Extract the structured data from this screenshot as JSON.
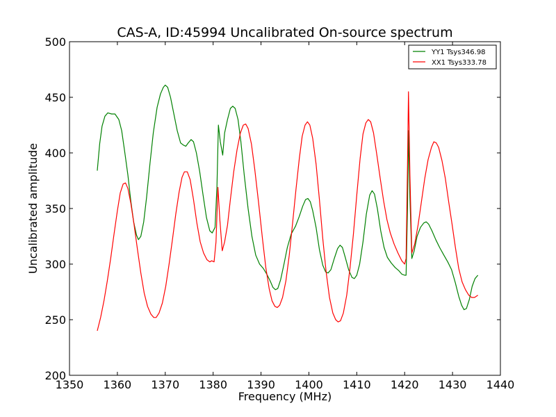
{
  "chart_data": {
    "type": "line",
    "title": "CAS-A, ID:45994 Uncalibrated On-source spectrum",
    "xlabel": "Frequency (MHz)",
    "ylabel": "Uncalibrated amplitude",
    "xlim": [
      1350,
      1440
    ],
    "ylim": [
      200,
      500
    ],
    "xticks": [
      1350,
      1360,
      1370,
      1380,
      1390,
      1400,
      1410,
      1420,
      1430,
      1440
    ],
    "yticks": [
      200,
      250,
      300,
      350,
      400,
      450,
      500
    ],
    "grid": false,
    "legend_position": "top-right",
    "series": [
      {
        "name": "YY1 Tsys346.98",
        "color": "#008000",
        "points": [
          [
            1355.8,
            384
          ],
          [
            1356.3,
            408
          ],
          [
            1356.8,
            424
          ],
          [
            1357.4,
            433
          ],
          [
            1358.0,
            436
          ],
          [
            1358.8,
            435
          ],
          [
            1359.5,
            435
          ],
          [
            1360.3,
            430
          ],
          [
            1360.9,
            420
          ],
          [
            1361.5,
            402
          ],
          [
            1362.2,
            380
          ],
          [
            1362.8,
            357
          ],
          [
            1363.4,
            338
          ],
          [
            1364.0,
            326
          ],
          [
            1364.4,
            322
          ],
          [
            1364.9,
            325
          ],
          [
            1365.5,
            338
          ],
          [
            1366.1,
            360
          ],
          [
            1366.8,
            390
          ],
          [
            1367.5,
            418
          ],
          [
            1368.3,
            441
          ],
          [
            1369.0,
            453
          ],
          [
            1369.6,
            459
          ],
          [
            1370.0,
            461
          ],
          [
            1370.5,
            459
          ],
          [
            1371.1,
            450
          ],
          [
            1371.8,
            435
          ],
          [
            1372.5,
            420
          ],
          [
            1373.2,
            409
          ],
          [
            1373.8,
            407
          ],
          [
            1374.3,
            406
          ],
          [
            1374.8,
            409
          ],
          [
            1375.4,
            412
          ],
          [
            1375.9,
            410
          ],
          [
            1376.5,
            400
          ],
          [
            1377.2,
            383
          ],
          [
            1377.9,
            362
          ],
          [
            1378.6,
            342
          ],
          [
            1379.3,
            330
          ],
          [
            1379.8,
            328
          ],
          [
            1380.4,
            333
          ],
          [
            1380.8,
            370
          ],
          [
            1381.1,
            425
          ],
          [
            1381.5,
            410
          ],
          [
            1382.0,
            398
          ],
          [
            1382.4,
            418
          ],
          [
            1383.0,
            430
          ],
          [
            1383.6,
            440
          ],
          [
            1384.1,
            442
          ],
          [
            1384.6,
            440
          ],
          [
            1385.2,
            430
          ],
          [
            1385.8,
            410
          ],
          [
            1386.5,
            380
          ],
          [
            1387.3,
            350
          ],
          [
            1388.1,
            325
          ],
          [
            1388.9,
            308
          ],
          [
            1389.7,
            300
          ],
          [
            1390.5,
            296
          ],
          [
            1391.2,
            291
          ],
          [
            1391.9,
            285
          ],
          [
            1392.5,
            279
          ],
          [
            1393.0,
            277
          ],
          [
            1393.5,
            278
          ],
          [
            1394.1,
            286
          ],
          [
            1394.8,
            300
          ],
          [
            1395.5,
            315
          ],
          [
            1396.3,
            327
          ],
          [
            1397.2,
            334
          ],
          [
            1398.0,
            343
          ],
          [
            1398.7,
            352
          ],
          [
            1399.3,
            358
          ],
          [
            1399.8,
            359
          ],
          [
            1400.3,
            356
          ],
          [
            1400.8,
            348
          ],
          [
            1401.5,
            333
          ],
          [
            1402.2,
            313
          ],
          [
            1402.9,
            299
          ],
          [
            1403.5,
            293
          ],
          [
            1404.0,
            292
          ],
          [
            1404.6,
            295
          ],
          [
            1405.3,
            305
          ],
          [
            1406.0,
            314
          ],
          [
            1406.5,
            317
          ],
          [
            1407.0,
            315
          ],
          [
            1407.6,
            306
          ],
          [
            1408.3,
            295
          ],
          [
            1409.0,
            288
          ],
          [
            1409.5,
            287
          ],
          [
            1410.0,
            290
          ],
          [
            1410.6,
            300
          ],
          [
            1411.3,
            320
          ],
          [
            1412.0,
            345
          ],
          [
            1412.7,
            362
          ],
          [
            1413.2,
            366
          ],
          [
            1413.7,
            363
          ],
          [
            1414.3,
            350
          ],
          [
            1415.0,
            330
          ],
          [
            1415.7,
            315
          ],
          [
            1416.4,
            306
          ],
          [
            1417.2,
            301
          ],
          [
            1418.0,
            297
          ],
          [
            1418.8,
            294
          ],
          [
            1419.4,
            291
          ],
          [
            1420.0,
            290
          ],
          [
            1420.3,
            290
          ],
          [
            1420.6,
            350
          ],
          [
            1420.8,
            420
          ],
          [
            1421.1,
            360
          ],
          [
            1421.5,
            305
          ],
          [
            1422.0,
            312
          ],
          [
            1422.6,
            325
          ],
          [
            1423.3,
            333
          ],
          [
            1424.0,
            337
          ],
          [
            1424.5,
            338
          ],
          [
            1425.0,
            336
          ],
          [
            1425.7,
            330
          ],
          [
            1426.5,
            322
          ],
          [
            1427.3,
            315
          ],
          [
            1428.2,
            308
          ],
          [
            1429.0,
            302
          ],
          [
            1429.8,
            295
          ],
          [
            1430.6,
            283
          ],
          [
            1431.3,
            271
          ],
          [
            1431.9,
            263
          ],
          [
            1432.4,
            259
          ],
          [
            1432.9,
            260
          ],
          [
            1433.5,
            268
          ],
          [
            1434.1,
            280
          ],
          [
            1434.7,
            287
          ],
          [
            1435.3,
            290
          ]
        ]
      },
      {
        "name": "XX1 Tsys333.78",
        "color": "#ff0000",
        "points": [
          [
            1355.8,
            240
          ],
          [
            1356.5,
            252
          ],
          [
            1357.2,
            267
          ],
          [
            1357.9,
            285
          ],
          [
            1358.6,
            305
          ],
          [
            1359.3,
            327
          ],
          [
            1360.0,
            348
          ],
          [
            1360.6,
            364
          ],
          [
            1361.2,
            372
          ],
          [
            1361.7,
            373
          ],
          [
            1362.2,
            368
          ],
          [
            1362.8,
            355
          ],
          [
            1363.5,
            335
          ],
          [
            1364.2,
            313
          ],
          [
            1364.9,
            292
          ],
          [
            1365.6,
            274
          ],
          [
            1366.3,
            262
          ],
          [
            1367.0,
            255
          ],
          [
            1367.6,
            252
          ],
          [
            1368.1,
            252
          ],
          [
            1368.7,
            256
          ],
          [
            1369.4,
            265
          ],
          [
            1370.1,
            280
          ],
          [
            1370.8,
            300
          ],
          [
            1371.5,
            322
          ],
          [
            1372.2,
            345
          ],
          [
            1372.9,
            365
          ],
          [
            1373.5,
            378
          ],
          [
            1374.0,
            383
          ],
          [
            1374.6,
            383
          ],
          [
            1375.2,
            376
          ],
          [
            1375.9,
            358
          ],
          [
            1376.6,
            337
          ],
          [
            1377.3,
            320
          ],
          [
            1378.0,
            310
          ],
          [
            1378.7,
            304
          ],
          [
            1379.3,
            302
          ],
          [
            1379.7,
            303
          ],
          [
            1380.2,
            302
          ],
          [
            1380.6,
            320
          ],
          [
            1381.0,
            369
          ],
          [
            1381.4,
            340
          ],
          [
            1381.9,
            312
          ],
          [
            1382.4,
            320
          ],
          [
            1383.0,
            335
          ],
          [
            1383.6,
            358
          ],
          [
            1384.3,
            383
          ],
          [
            1385.0,
            403
          ],
          [
            1385.7,
            418
          ],
          [
            1386.3,
            425
          ],
          [
            1386.8,
            426
          ],
          [
            1387.3,
            422
          ],
          [
            1388.0,
            408
          ],
          [
            1388.7,
            385
          ],
          [
            1389.5,
            355
          ],
          [
            1390.3,
            323
          ],
          [
            1391.0,
            297
          ],
          [
            1391.7,
            278
          ],
          [
            1392.3,
            267
          ],
          [
            1392.9,
            262
          ],
          [
            1393.4,
            261
          ],
          [
            1393.9,
            263
          ],
          [
            1394.5,
            270
          ],
          [
            1395.2,
            285
          ],
          [
            1395.9,
            308
          ],
          [
            1396.6,
            337
          ],
          [
            1397.3,
            367
          ],
          [
            1398.0,
            395
          ],
          [
            1398.6,
            415
          ],
          [
            1399.2,
            425
          ],
          [
            1399.7,
            428
          ],
          [
            1400.2,
            425
          ],
          [
            1400.8,
            413
          ],
          [
            1401.5,
            390
          ],
          [
            1402.2,
            358
          ],
          [
            1402.9,
            323
          ],
          [
            1403.6,
            293
          ],
          [
            1404.3,
            270
          ],
          [
            1405.0,
            256
          ],
          [
            1405.6,
            250
          ],
          [
            1406.1,
            248
          ],
          [
            1406.6,
            249
          ],
          [
            1407.2,
            256
          ],
          [
            1407.9,
            272
          ],
          [
            1408.6,
            297
          ],
          [
            1409.3,
            327
          ],
          [
            1410.0,
            362
          ],
          [
            1410.7,
            395
          ],
          [
            1411.3,
            417
          ],
          [
            1411.9,
            427
          ],
          [
            1412.4,
            430
          ],
          [
            1412.9,
            428
          ],
          [
            1413.5,
            418
          ],
          [
            1414.2,
            398
          ],
          [
            1414.9,
            377
          ],
          [
            1415.6,
            357
          ],
          [
            1416.3,
            340
          ],
          [
            1417.0,
            328
          ],
          [
            1417.8,
            318
          ],
          [
            1418.6,
            310
          ],
          [
            1419.4,
            303
          ],
          [
            1420.0,
            300
          ],
          [
            1420.3,
            305
          ],
          [
            1420.6,
            390
          ],
          [
            1420.8,
            455
          ],
          [
            1421.1,
            380
          ],
          [
            1421.5,
            310
          ],
          [
            1422.1,
            318
          ],
          [
            1422.8,
            335
          ],
          [
            1423.5,
            356
          ],
          [
            1424.2,
            377
          ],
          [
            1424.9,
            394
          ],
          [
            1425.6,
            405
          ],
          [
            1426.1,
            410
          ],
          [
            1426.6,
            409
          ],
          [
            1427.1,
            405
          ],
          [
            1427.8,
            393
          ],
          [
            1428.5,
            377
          ],
          [
            1429.2,
            356
          ],
          [
            1429.9,
            336
          ],
          [
            1430.6,
            315
          ],
          [
            1431.3,
            296
          ],
          [
            1432.0,
            284
          ],
          [
            1432.7,
            277
          ],
          [
            1433.4,
            272
          ],
          [
            1434.0,
            270
          ],
          [
            1434.6,
            270
          ],
          [
            1435.3,
            272
          ]
        ]
      }
    ]
  }
}
